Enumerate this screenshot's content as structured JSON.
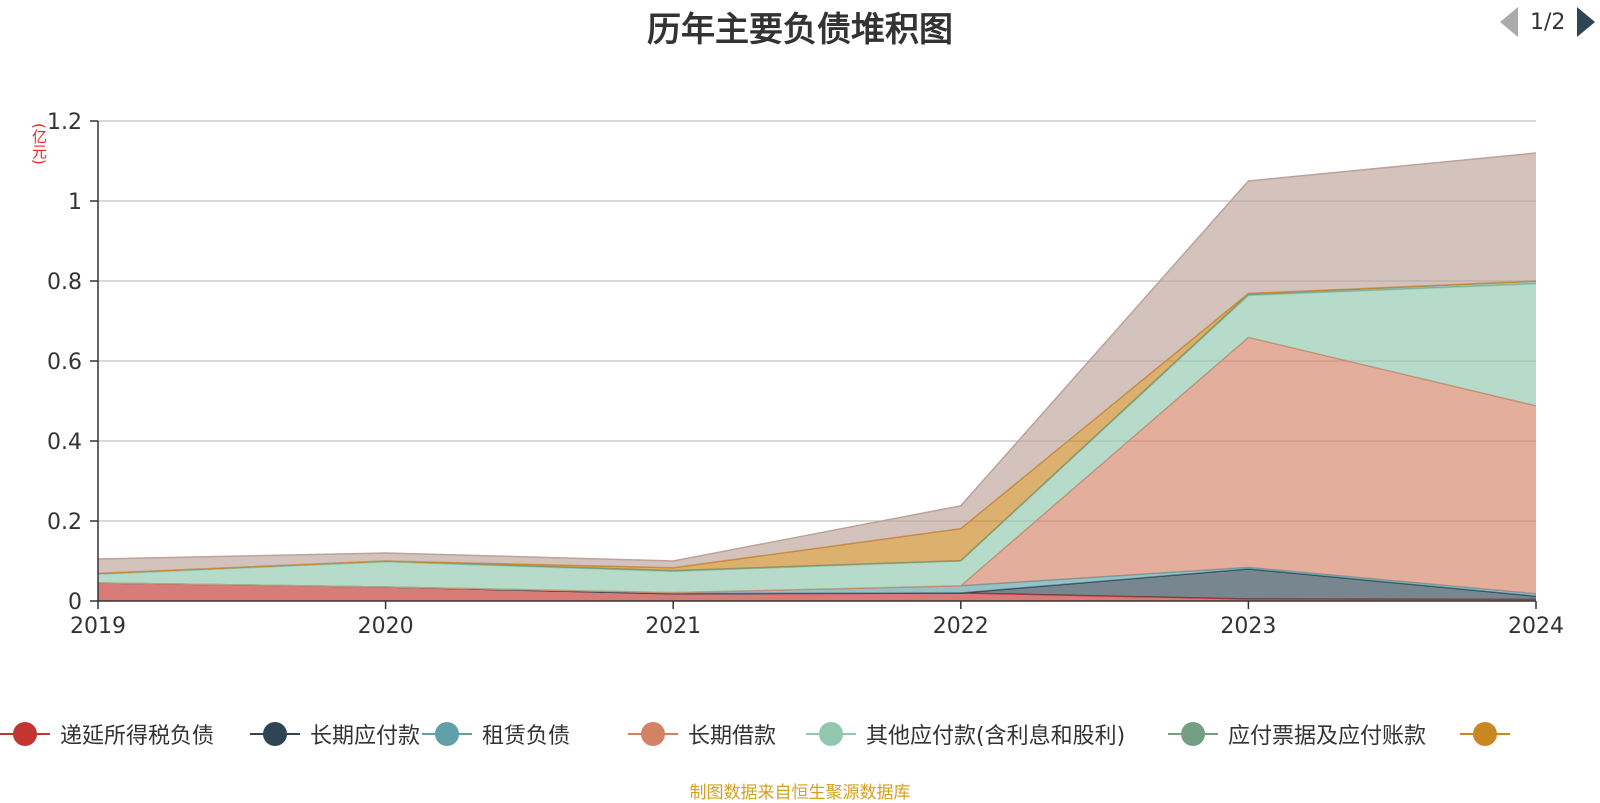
{
  "chart_data": {
    "type": "area",
    "stacked": true,
    "title": "历年主要负债堆积图",
    "y_unit": "(亿元)",
    "x": [
      "2019",
      "2020",
      "2021",
      "2022",
      "2023",
      "2024"
    ],
    "ylim": [
      0,
      1.2
    ],
    "yticks": [
      "0",
      "0.2",
      "0.4",
      "0.6",
      "0.8",
      "1",
      "1.2"
    ],
    "grid": true,
    "legend_position": "bottom",
    "series": [
      {
        "name": "递延所得税负债",
        "color": "#c23531",
        "values": [
          0.045,
          0.035,
          0.018,
          0.02,
          0.005,
          0.004
        ]
      },
      {
        "name": "长期应付款",
        "color": "#2f4554",
        "values": [
          0,
          0,
          0,
          0,
          0.075,
          0.008
        ]
      },
      {
        "name": "租赁负债",
        "color": "#61a0a8",
        "values": [
          0,
          0,
          0.003,
          0.018,
          0.004,
          0.006
        ]
      },
      {
        "name": "长期借款",
        "color": "#d48265",
        "values": [
          0,
          0,
          0,
          0,
          0.575,
          0.47
        ]
      },
      {
        "name": "其他应付款(含利息和股利)",
        "color": "#91c7ae",
        "values": [
          0.022,
          0.063,
          0.053,
          0.062,
          0.105,
          0.305
        ]
      },
      {
        "name": "应付票据及应付账款",
        "color": "#749f83",
        "values": [
          0.002,
          0.002,
          0.002,
          0.001,
          0.003,
          0.007
        ]
      },
      {
        "name": "",
        "color": "#ca8622",
        "values": [
          0,
          0,
          0.007,
          0.08,
          0.002,
          0
        ]
      },
      {
        "name": "",
        "color": "#bda29a",
        "values": [
          0.036,
          0.02,
          0.017,
          0.057,
          0.281,
          0.32
        ]
      }
    ]
  },
  "legend": {
    "pager_text": "1/2"
  },
  "source_note": "制图数据来自恒生聚源数据库"
}
